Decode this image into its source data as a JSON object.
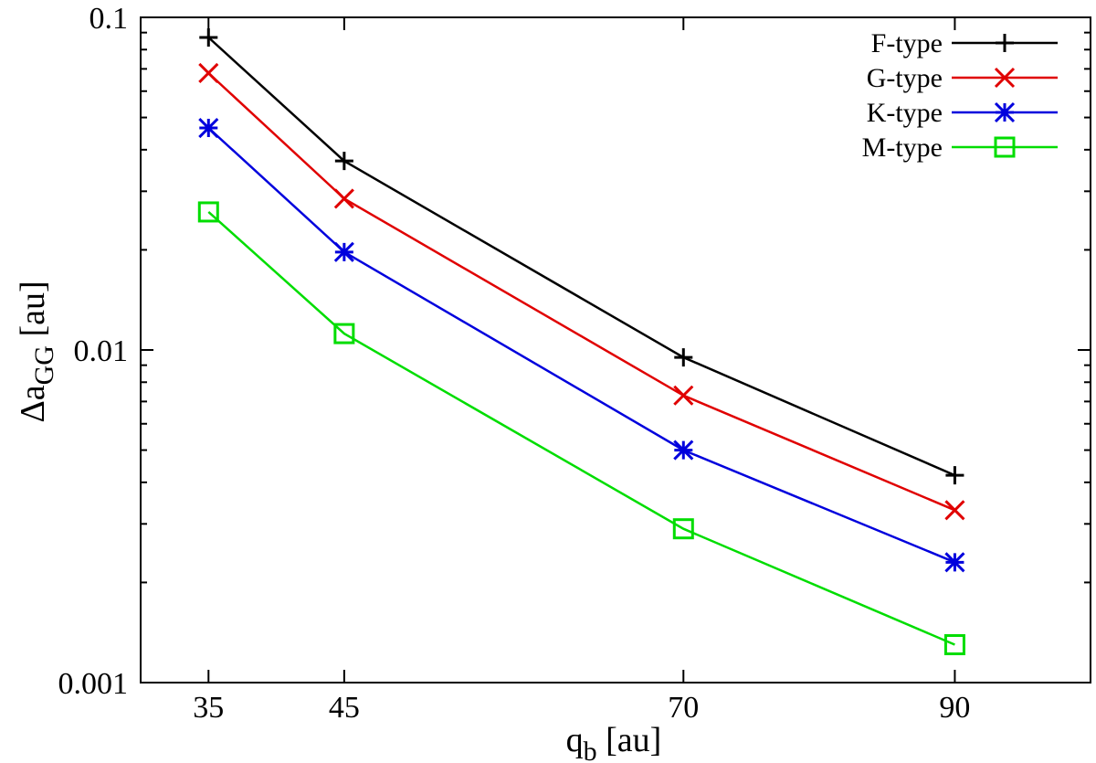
{
  "chart_data": {
    "type": "line",
    "x_scale": "linear",
    "y_scale": "log",
    "xlim": [
      30,
      100
    ],
    "ylim": [
      0.001,
      0.1
    ],
    "x_ticks": [
      35,
      45,
      70,
      90
    ],
    "x_tick_labels": [
      "35",
      "45",
      "70",
      "90"
    ],
    "y_ticks": [
      0.001,
      0.01,
      0.1
    ],
    "y_tick_labels": [
      "0.001",
      "0.01",
      "0.1"
    ],
    "xlabel": {
      "main": "q",
      "sub": "b",
      "unit": " [au]"
    },
    "ylabel": {
      "main": "Δa",
      "sub": "GG",
      "unit": " [au]"
    },
    "legend_position": "top-right",
    "grid": false,
    "x": [
      35,
      45,
      70,
      90
    ],
    "series": [
      {
        "name": "F-type",
        "color": "#000000",
        "marker": "plus",
        "values": [
          0.087,
          0.037,
          0.0095,
          0.0042
        ]
      },
      {
        "name": "G-type",
        "color": "#e00000",
        "marker": "cross",
        "values": [
          0.068,
          0.0285,
          0.0073,
          0.0033
        ]
      },
      {
        "name": "K-type",
        "color": "#0000dd",
        "marker": "asterisk",
        "values": [
          0.0465,
          0.0197,
          0.005,
          0.0023
        ]
      },
      {
        "name": "M-type",
        "color": "#00dd00",
        "marker": "square",
        "values": [
          0.026,
          0.0112,
          0.0029,
          0.0013
        ]
      }
    ]
  }
}
